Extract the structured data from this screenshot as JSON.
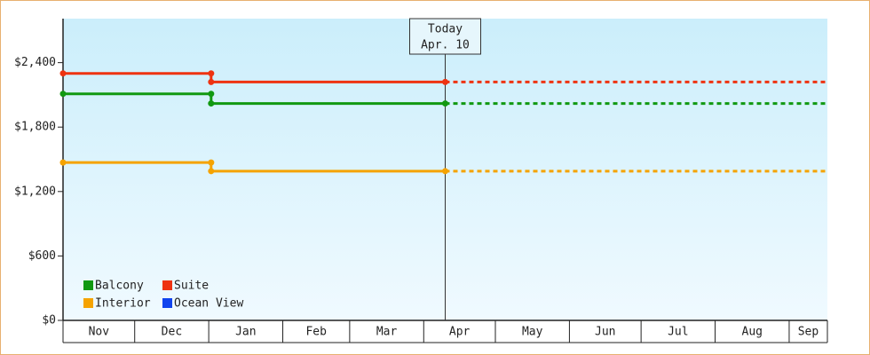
{
  "chart_data": {
    "type": "step-line",
    "x": [
      0,
      62,
      62,
      160
    ],
    "xlim": [
      0,
      320
    ],
    "xticks": [
      {
        "value": 0,
        "label": "Nov"
      },
      {
        "value": 30,
        "label": "Dec"
      },
      {
        "value": 61,
        "label": "Jan"
      },
      {
        "value": 92,
        "label": "Feb"
      },
      {
        "value": 120,
        "label": "Mar"
      },
      {
        "value": 151,
        "label": "Apr"
      },
      {
        "value": 181,
        "label": "May"
      },
      {
        "value": 212,
        "label": "Jun"
      },
      {
        "value": 242,
        "label": "Jul"
      },
      {
        "value": 273,
        "label": "Aug"
      },
      {
        "value": 304,
        "label": "Sep"
      }
    ],
    "ylim": [
      0,
      2810
    ],
    "yticks": [
      {
        "value": 0,
        "label": "$0"
      },
      {
        "value": 600,
        "label": "$600"
      },
      {
        "value": 1200,
        "label": "$1,200"
      },
      {
        "value": 1800,
        "label": "$1,800"
      },
      {
        "value": 2400,
        "label": "$2,400"
      }
    ],
    "series": [
      {
        "name": "Balcony",
        "color": "#119911",
        "values": [
          2110,
          2110,
          2020,
          2020
        ]
      },
      {
        "name": "Suite",
        "color": "#ee3311",
        "values": [
          2300,
          2300,
          2220,
          2220
        ]
      },
      {
        "name": "Interior",
        "color": "#f5a300",
        "values": [
          1470,
          1470,
          1390,
          1390
        ]
      },
      {
        "name": "Ocean View",
        "color": "#1144ee",
        "values": [
          null,
          null,
          null,
          null
        ]
      }
    ],
    "annotation": {
      "x": 160,
      "text": [
        "Today",
        "Apr. 10"
      ]
    },
    "legend": "lower left",
    "projection": "dashed"
  }
}
